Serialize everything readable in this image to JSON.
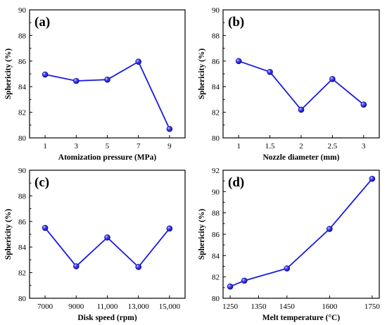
{
  "chart_data": [
    {
      "type": "line",
      "panel_label": "(a)",
      "xlabel": "Atomization pressure (MPa)",
      "ylabel": "Sphericity (%)",
      "categories": [
        "1",
        "3",
        "5",
        "7",
        "9"
      ],
      "values": [
        84.95,
        84.45,
        84.55,
        85.95,
        80.7
      ],
      "ylim": [
        80,
        90
      ],
      "yticks": [
        "80",
        "82",
        "84",
        "86",
        "88",
        "90"
      ],
      "color": "#1a1adf"
    },
    {
      "type": "line",
      "panel_label": "(b)",
      "xlabel": "Nozzle diameter (mm)",
      "ylabel": "Sphericity (%)",
      "categories": [
        "1",
        "1.5",
        "2",
        "2.5",
        "3"
      ],
      "values": [
        86.0,
        85.15,
        82.2,
        84.6,
        82.6
      ],
      "ylim": [
        80,
        90
      ],
      "yticks": [
        "80",
        "82",
        "84",
        "86",
        "88",
        "90"
      ],
      "color": "#1a1adf"
    },
    {
      "type": "line",
      "panel_label": "(c)",
      "xlabel": "Disk speed (rpm)",
      "ylabel": "Sphericity (%)",
      "categories": [
        "7000",
        "9000",
        "11,000",
        "13,000",
        "15,000"
      ],
      "values": [
        85.5,
        82.5,
        84.75,
        82.45,
        85.45
      ],
      "ylim": [
        80,
        90
      ],
      "yticks": [
        "80",
        "82",
        "84",
        "86",
        "88",
        "90"
      ],
      "color": "#1a1adf"
    },
    {
      "type": "line",
      "panel_label": "(d)",
      "xlabel": "Melt temperature (°C)",
      "ylabel": "Sphericity (%)",
      "x": [
        1250,
        1300,
        1450,
        1600,
        1750
      ],
      "values": [
        81.1,
        81.65,
        82.8,
        86.5,
        91.2
      ],
      "xlim": [
        1225,
        1775
      ],
      "xticks": [
        1250,
        1350,
        1450,
        1600,
        1750
      ],
      "xtick_labels": [
        "1250",
        "1350",
        "1450",
        "1600",
        "1750"
      ],
      "ylim": [
        80,
        92
      ],
      "yticks": [
        "80",
        "82",
        "84",
        "86",
        "88",
        "90",
        "92"
      ],
      "color": "#1a1adf"
    }
  ]
}
